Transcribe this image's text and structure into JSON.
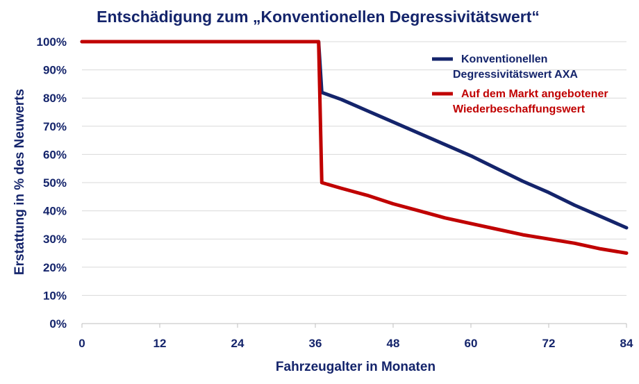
{
  "chart_data": {
    "type": "line",
    "title": "Entschädigung zum „Konventionellen Degressivitätswert“",
    "xlabel": "Fahrzeugalter in Monaten",
    "ylabel": "Erstattung in % des Neuwerts",
    "xlim": [
      0,
      84
    ],
    "ylim": [
      0,
      100
    ],
    "xticks": [
      "0",
      "12",
      "24",
      "36",
      "48",
      "60",
      "72",
      "84"
    ],
    "yticks": [
      "0%",
      "10%",
      "20%",
      "30%",
      "40%",
      "50%",
      "60%",
      "70%",
      "80%",
      "90%",
      "100%"
    ],
    "grid": "horizontal",
    "legend_position": "top-right",
    "series": [
      {
        "name_lines": [
          "Konventionellen",
          "Degressivitätswert AXA"
        ],
        "color": "#14246b",
        "x": [
          0,
          36,
          36.5,
          37,
          40,
          42,
          44,
          46,
          48,
          52,
          56,
          60,
          64,
          68,
          72,
          76,
          80,
          84
        ],
        "y": [
          100,
          100,
          100,
          82,
          79.5,
          77.5,
          75.5,
          73.5,
          71.5,
          67.5,
          63.5,
          59.5,
          55,
          50.5,
          46.5,
          42,
          38,
          34
        ]
      },
      {
        "name_lines": [
          "Auf dem Markt angebotener",
          "Wiederbeschaffungswert"
        ],
        "color": "#c00000",
        "x": [
          0,
          36,
          36.5,
          37,
          40,
          44,
          48,
          52,
          56,
          60,
          64,
          68,
          72,
          76,
          80,
          84
        ],
        "y": [
          100,
          100,
          100,
          50,
          48,
          45.5,
          42.5,
          40,
          37.5,
          35.5,
          33.5,
          31.5,
          30,
          28.5,
          26.5,
          25
        ]
      }
    ]
  }
}
